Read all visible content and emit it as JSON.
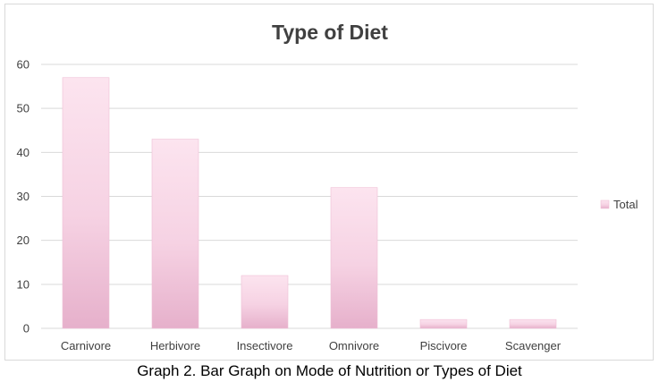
{
  "chart_data": {
    "type": "bar",
    "title": "Type of Diet",
    "categories": [
      "Carnivore",
      "Herbivore",
      "Insectivore",
      "Omnivore",
      "Piscivore",
      "Scavenger"
    ],
    "series": [
      {
        "name": "Total",
        "values": [
          57,
          43,
          12,
          32,
          2,
          2
        ]
      }
    ],
    "xlabel": "",
    "ylabel": "",
    "ylim": [
      0,
      60
    ],
    "yticks": [
      0,
      10,
      20,
      30,
      40,
      50,
      60
    ],
    "grid": true,
    "legend_position": "right"
  },
  "colors": {
    "bar_top": "#fce4ef",
    "bar_bottom": "#e6b0cb",
    "bar_outline": "#efbfd5",
    "gridline": "#d9d9d9",
    "axis_text": "#404040",
    "title_text": "#404040"
  },
  "caption": "Graph 2. Bar Graph on Mode of Nutrition or Types of Diet"
}
